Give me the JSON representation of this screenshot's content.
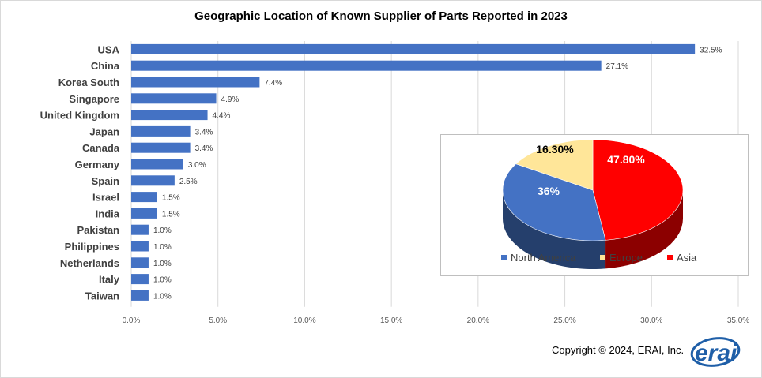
{
  "chart_data": [
    {
      "type": "bar",
      "orientation": "horizontal",
      "title": "Geographic Location of Known Supplier of Parts Reported in 2023",
      "categories": [
        "USA",
        "China",
        "Korea South",
        "Singapore",
        "United Kingdom",
        "Japan",
        "Canada",
        "Germany",
        "Spain",
        "Israel",
        "India",
        "Pakistan",
        "Philippines",
        "Netherlands",
        "Italy",
        "Taiwan"
      ],
      "values": [
        32.5,
        27.1,
        7.4,
        4.9,
        4.4,
        3.4,
        3.4,
        3.0,
        2.5,
        1.5,
        1.5,
        1.0,
        1.0,
        1.0,
        1.0,
        1.0
      ],
      "data_labels": [
        "32.5%",
        "27.1%",
        "7.4%",
        "4.9%",
        "4.4%",
        "3.4%",
        "3.4%",
        "3.0%",
        "2.5%",
        "1.5%",
        "1.5%",
        "1.0%",
        "1.0%",
        "1.0%",
        "1.0%",
        "1.0%"
      ],
      "xlim": [
        0,
        35
      ],
      "x_ticks": [
        0,
        5,
        10,
        15,
        20,
        25,
        30,
        35
      ],
      "x_tick_labels": [
        "0.0%",
        "5.0%",
        "10.0%",
        "15.0%",
        "20.0%",
        "25.0%",
        "30.0%",
        "35.0%"
      ],
      "grid": true,
      "bar_color": "#4472C4"
    },
    {
      "type": "pie",
      "style": "3d",
      "categories": [
        "North America",
        "Europe",
        "Asia"
      ],
      "values": [
        36,
        16.3,
        47.8
      ],
      "data_labels": [
        "36%",
        "16.30%",
        "47.80%"
      ],
      "colors": [
        "#4472C4",
        "#FFE699",
        "#FF0000"
      ],
      "legend_placement": "bottom"
    }
  ],
  "footer": {
    "copyright": "Copyright © 2024, ERAI, Inc.",
    "logo_text": "erai"
  }
}
